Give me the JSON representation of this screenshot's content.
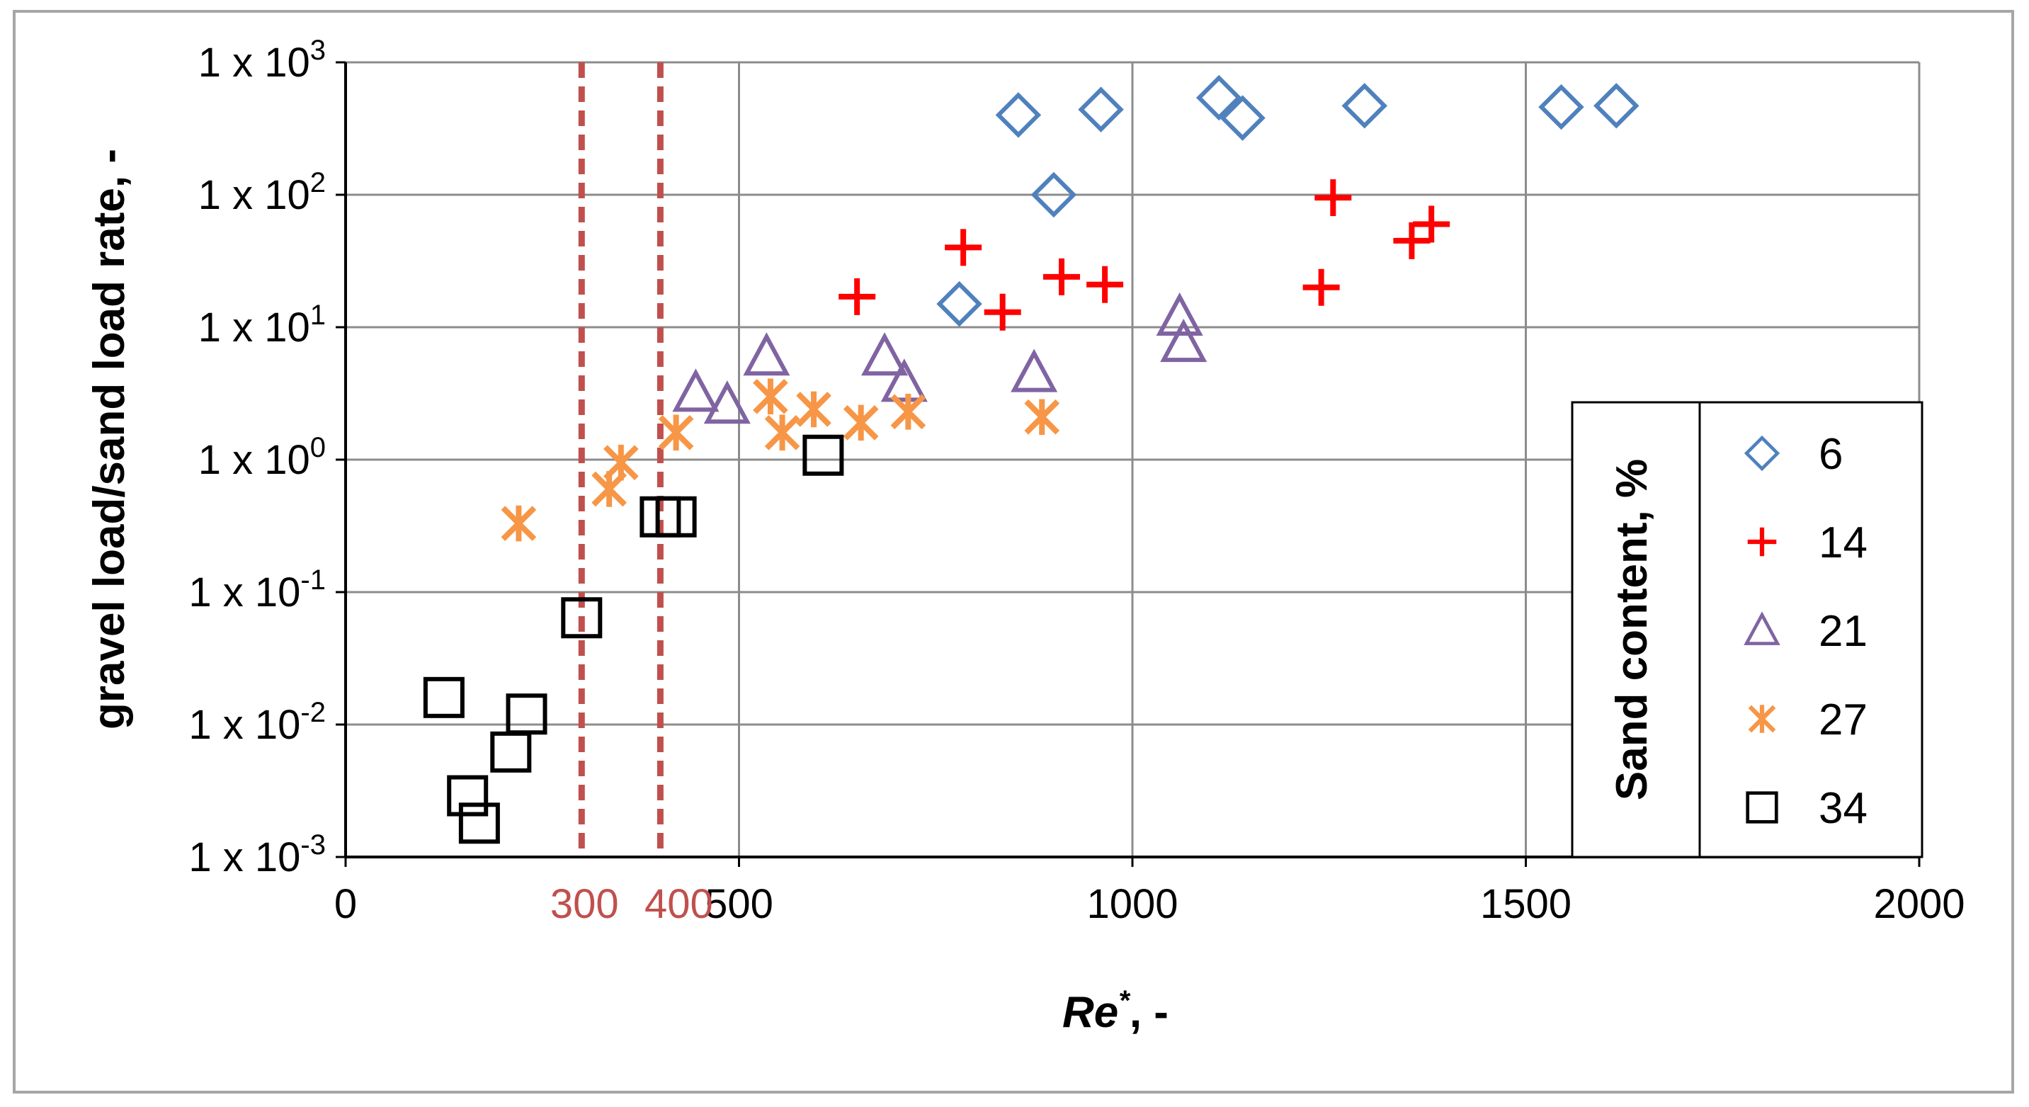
{
  "chart_data": {
    "type": "scatter",
    "title": "",
    "xlabel": "Re*, -",
    "xlabel_main": "Re",
    "xlabel_sup": "*",
    "xlabel_tail": ", -",
    "ylabel": "gravel load/sand load rate, -",
    "xlim": [
      0,
      2000
    ],
    "ylim": [
      0.001,
      1000
    ],
    "yscale": "log",
    "grid": true,
    "x_ticks": [
      {
        "value": 0,
        "label": "0"
      },
      {
        "value": 500,
        "label": "500"
      },
      {
        "value": 1000,
        "label": "1000"
      },
      {
        "value": 1500,
        "label": "1500"
      },
      {
        "value": 2000,
        "label": "2000"
      }
    ],
    "y_ticks": [
      {
        "value": 0.001,
        "base": "1 x 10",
        "exp": "-3"
      },
      {
        "value": 0.01,
        "base": "1 x 10",
        "exp": "-2"
      },
      {
        "value": 0.1,
        "base": "1 x 10",
        "exp": "-1"
      },
      {
        "value": 1,
        "base": "1 x 10",
        "exp": "0"
      },
      {
        "value": 10,
        "base": "1 x 10",
        "exp": "1"
      },
      {
        "value": 100,
        "base": "1 x 10",
        "exp": "2"
      },
      {
        "value": 1000,
        "base": "1 x 10",
        "exp": "3"
      }
    ],
    "reference_lines": [
      {
        "x": 300,
        "label": "300",
        "color": "#c0504d"
      },
      {
        "x": 400,
        "label": "400",
        "color": "#c0504d"
      }
    ],
    "legend": {
      "title": "Sand content, %",
      "position": "bottom-right"
    },
    "series": [
      {
        "name": "6",
        "marker": "diamond",
        "color": "#4f81bd",
        "points": [
          [
            855,
            400
          ],
          [
            960,
            440
          ],
          [
            1110,
            540
          ],
          [
            1140,
            380
          ],
          [
            1295,
            470
          ],
          [
            1545,
            460
          ],
          [
            1615,
            470
          ],
          [
            900,
            100
          ],
          [
            780,
            15
          ]
        ]
      },
      {
        "name": "14",
        "marker": "plus",
        "color": "#ff0000",
        "points": [
          [
            785,
            40
          ],
          [
            910,
            24
          ],
          [
            965,
            21
          ],
          [
            835,
            13
          ],
          [
            650,
            17
          ],
          [
            1240,
            20
          ],
          [
            1255,
            95
          ],
          [
            1355,
            45
          ],
          [
            1380,
            60
          ]
        ]
      },
      {
        "name": "21",
        "marker": "triangle",
        "color": "#8064a2",
        "points": [
          [
            445,
            3.2
          ],
          [
            485,
            2.6
          ],
          [
            535,
            6.0
          ],
          [
            685,
            6.0
          ],
          [
            710,
            3.8
          ],
          [
            875,
            4.5
          ],
          [
            1060,
            12
          ],
          [
            1065,
            7.6
          ]
        ]
      },
      {
        "name": "27",
        "marker": "star",
        "color": "#f79646",
        "points": [
          [
            220,
            0.33
          ],
          [
            335,
            0.6
          ],
          [
            350,
            0.95
          ],
          [
            420,
            1.6
          ],
          [
            540,
            3.0
          ],
          [
            555,
            1.6
          ],
          [
            595,
            2.4
          ],
          [
            655,
            1.9
          ],
          [
            715,
            2.3
          ],
          [
            885,
            2.1
          ]
        ]
      },
      {
        "name": "34",
        "marker": "square",
        "color": "#000000",
        "points": [
          [
            125,
            0.016
          ],
          [
            155,
            0.0029
          ],
          [
            170,
            0.0018
          ],
          [
            210,
            0.0062
          ],
          [
            230,
            0.012
          ],
          [
            300,
            0.064
          ],
          [
            400,
            0.37
          ],
          [
            420,
            0.37
          ],
          [
            607,
            1.08
          ]
        ]
      }
    ]
  }
}
